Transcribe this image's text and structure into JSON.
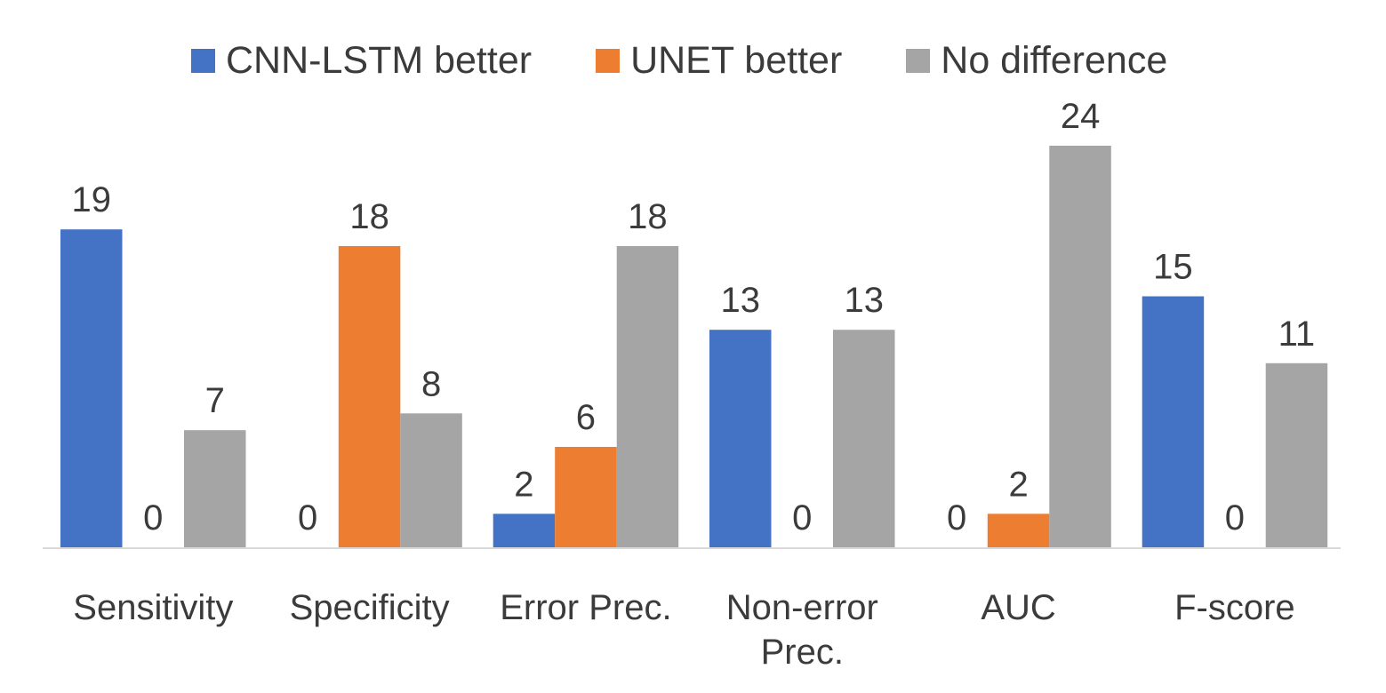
{
  "chart_data": {
    "type": "bar",
    "categories": [
      "Sensitivity",
      "Specificity",
      "Error Prec.",
      "Non-error Prec.",
      "AUC",
      "F-score"
    ],
    "category_lines": [
      [
        "Sensitivity"
      ],
      [
        "Specificity"
      ],
      [
        "Error Prec."
      ],
      [
        "Non-error",
        "Prec."
      ],
      [
        "AUC"
      ],
      [
        "F-score"
      ]
    ],
    "series": [
      {
        "name": "CNN-LSTM better",
        "color": "#4472c4",
        "values": [
          19,
          0,
          2,
          13,
          0,
          15
        ]
      },
      {
        "name": "UNET better",
        "color": "#ed7d31",
        "values": [
          0,
          18,
          6,
          0,
          2,
          0
        ]
      },
      {
        "name": "No difference",
        "color": "#a5a5a5",
        "values": [
          7,
          8,
          18,
          13,
          24,
          11
        ]
      }
    ],
    "ylim": [
      0,
      24
    ],
    "data_labels": true,
    "legend_position": "top",
    "grid": false
  }
}
